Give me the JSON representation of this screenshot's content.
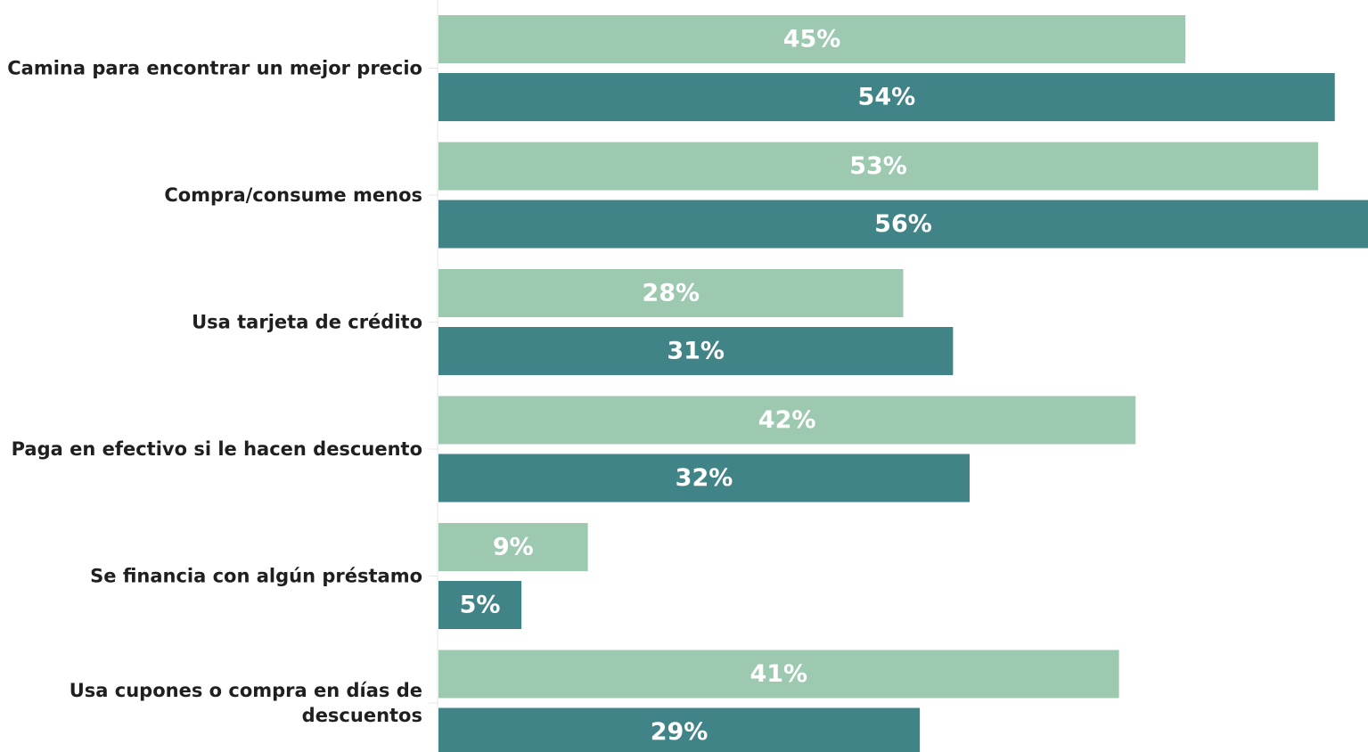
{
  "chart_data": {
    "type": "bar",
    "orientation": "horizontal",
    "categories": [
      [
        "Camina para encontrar un mejor precio"
      ],
      [
        "Compra/consume menos"
      ],
      [
        "Usa tarjeta de crédito"
      ],
      [
        "Paga en efectivo si le hacen descuento"
      ],
      [
        "Se financia con algún préstamo"
      ],
      [
        "Usa cupones o compra en días de",
        "descuentos"
      ]
    ],
    "series": [
      {
        "color": "#9dc9b0",
        "values": [
          45,
          53,
          28,
          42,
          9,
          41
        ],
        "labels": [
          "45%",
          "53%",
          "28%",
          "42%",
          "9%",
          "41%"
        ]
      },
      {
        "color": "#418487",
        "values": [
          54,
          56,
          31,
          32,
          5,
          29
        ],
        "labels": [
          "54%",
          "56%",
          "31%",
          "32%",
          "5%",
          "29%"
        ]
      }
    ],
    "title": "",
    "xlabel": "",
    "ylabel": "",
    "xlim": [
      0,
      56
    ],
    "grid": false,
    "legend": "none"
  }
}
